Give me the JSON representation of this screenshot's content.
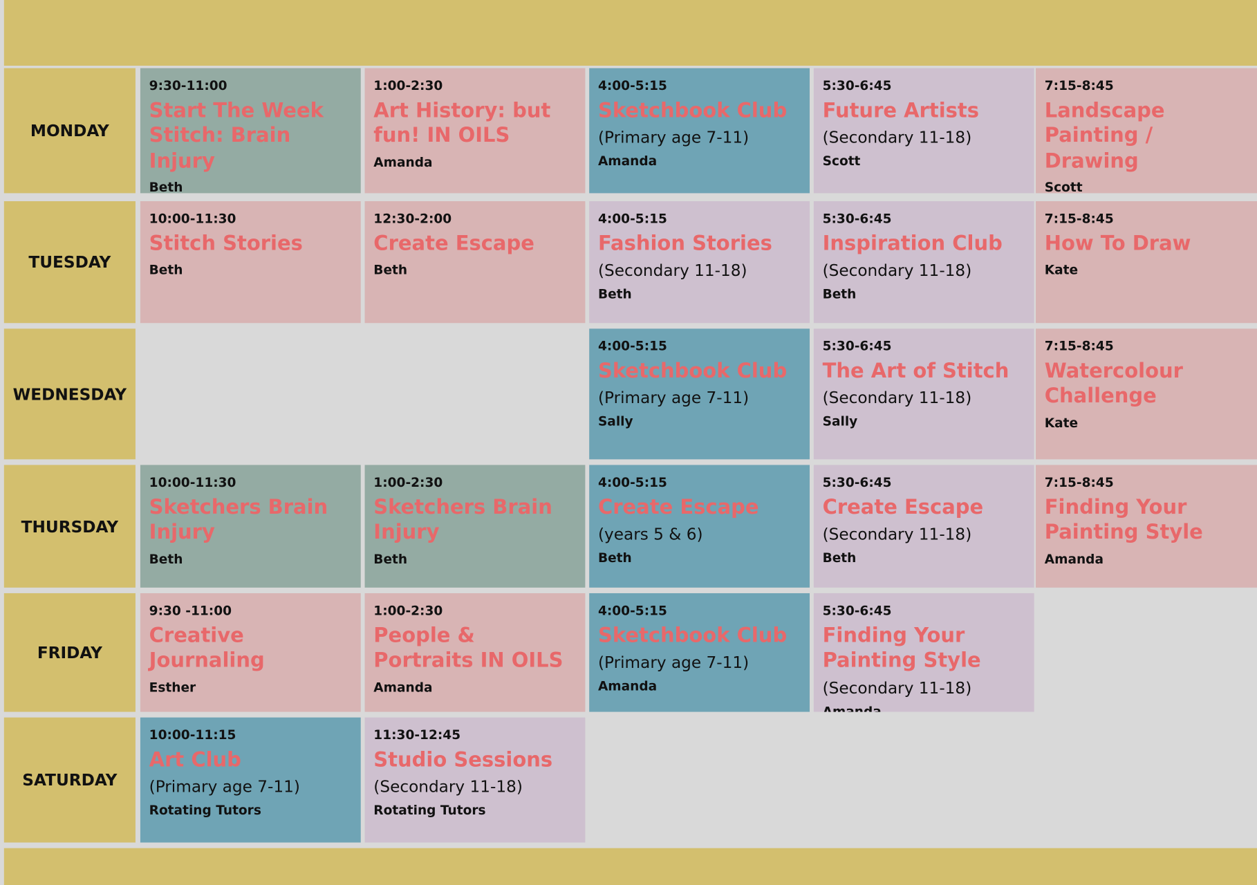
{
  "days": [
    {
      "name": "MONDAY",
      "sessions": [
        {
          "time": "9:30-11:00",
          "title": "Start The Week Stitch: Brain Injury",
          "tutor": "Beth",
          "color": "#94aba3"
        },
        {
          "time": "1:00-2:30",
          "title": "Art History: but fun! IN OILS",
          "tutor": "Amanda",
          "color": "#d8b4b4"
        },
        {
          "time": "4:00-5:15",
          "title": "Sketchbook Club",
          "subtitle": "(Primary age 7-11)",
          "tutor": "Amanda",
          "color": "#6fa4b5"
        },
        {
          "time": "5:30-6:45",
          "title": "Future Artists",
          "subtitle": "(Secondary 11-18)",
          "tutor": "Scott",
          "color": "#cec0cf"
        },
        {
          "time": "7:15-8:45",
          "title": "Landscape Painting / Drawing",
          "tutor": "Scott",
          "color": "#d8b4b4"
        }
      ]
    },
    {
      "name": "TUESDAY",
      "sessions": [
        {
          "time": "10:00-11:30",
          "title": "Stitch Stories",
          "tutor": "Beth",
          "color": "#d8b4b4"
        },
        {
          "time": "12:30-2:00",
          "title": "Create Escape",
          "tutor": "Beth",
          "color": "#d8b4b4"
        },
        {
          "time": "4:00-5:15",
          "title": "Fashion Stories",
          "subtitle": "(Secondary 11-18)",
          "tutor": "Beth",
          "color": "#cec0cf"
        },
        {
          "time": "5:30-6:45",
          "title": "Inspiration Club",
          "subtitle": "(Secondary 11-18)",
          "tutor": "Beth",
          "color": "#cec0cf"
        },
        {
          "time": "7:15-8:45",
          "title": "How To Draw",
          "tutor": "Kate",
          "color": "#d8b4b4"
        }
      ]
    },
    {
      "name": "WEDNESDAY",
      "sessions": [
        null,
        null,
        {
          "time": "4:00-5:15",
          "title": "Sketchbook Club",
          "subtitle": "(Primary age 7-11)",
          "tutor": "Sally",
          "color": "#6fa4b5"
        },
        {
          "time": "5:30-6:45",
          "title": "The Art of Stitch",
          "subtitle": "(Secondary 11-18)",
          "tutor": "Sally",
          "color": "#cec0cf"
        },
        {
          "time": "7:15-8:45",
          "title": "Watercolour Challenge",
          "tutor": "Kate",
          "color": "#d8b4b4"
        }
      ]
    },
    {
      "name": "THURSDAY",
      "sessions": [
        {
          "time": "10:00-11:30",
          "title": "Sketchers Brain Injury",
          "tutor": "Beth",
          "color": "#94aba3"
        },
        {
          "time": "1:00-2:30",
          "title": "Sketchers Brain Injury",
          "tutor": "Beth",
          "color": "#94aba3"
        },
        {
          "time": "4:00-5:15",
          "title": "Create Escape",
          "subtitle": "(years 5 & 6)",
          "tutor": "Beth",
          "color": "#6fa4b5"
        },
        {
          "time": "5:30-6:45",
          "title": "Create Escape",
          "subtitle": "(Secondary 11-18)",
          "tutor": "Beth",
          "color": "#cec0cf"
        },
        {
          "time": "7:15-8:45",
          "title": "Finding Your Painting Style",
          "tutor": "Amanda",
          "color": "#d8b4b4"
        }
      ]
    },
    {
      "name": "FRIDAY",
      "sessions": [
        {
          "time": "9:30 -11:00",
          "title": "Creative Journaling",
          "tutor": "Esther",
          "color": "#d8b4b4"
        },
        {
          "time": "1:00-2:30",
          "title": "People & Portraits IN OILS",
          "tutor": "Amanda",
          "color": "#d8b4b4"
        },
        {
          "time": "4:00-5:15",
          "title": "Sketchbook Club",
          "subtitle": "(Primary age 7-11)",
          "tutor": "Amanda",
          "color": "#6fa4b5"
        },
        {
          "time": "5:30-6:45",
          "title": "Finding Your Painting Style",
          "subtitle": "(Secondary 11-18)",
          "tutor": "Amanda",
          "color": "#cec0cf"
        }
      ]
    },
    {
      "name": "SATURDAY",
      "sessions": [
        {
          "time": "10:00-11:15",
          "title": "Art Club",
          "subtitle": "(Primary age 7-11)",
          "tutor": "Rotating Tutors",
          "color": "#6fa4b5"
        },
        {
          "time": "11:30-12:45",
          "title": "Studio Sessions",
          "subtitle": "(Secondary 11-18)",
          "tutor": "Rotating Tutors",
          "color": "#cec0cf"
        }
      ]
    }
  ]
}
